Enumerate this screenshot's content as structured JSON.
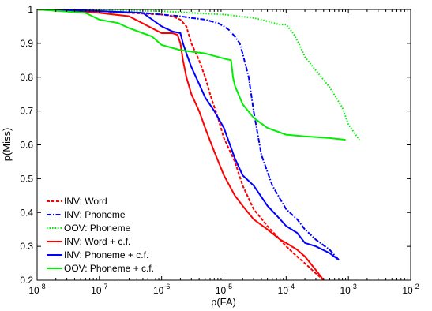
{
  "chart_data": {
    "type": "line",
    "xlabel": "p(FA)",
    "ylabel": "p(Miss)",
    "xscale": "log",
    "xlim": [
      1e-08,
      0.01
    ],
    "ylim": [
      0.2,
      1.0
    ],
    "x_ticks": [
      {
        "base": "10",
        "exp": "-8"
      },
      {
        "base": "10",
        "exp": "-7"
      },
      {
        "base": "10",
        "exp": "-6"
      },
      {
        "base": "10",
        "exp": "-5"
      },
      {
        "base": "10",
        "exp": "-4"
      },
      {
        "base": "10",
        "exp": "-3"
      },
      {
        "base": "10",
        "exp": "-2"
      }
    ],
    "x_tick_values": [
      1e-08,
      1e-07,
      1e-06,
      1e-05,
      0.0001,
      0.001,
      0.01
    ],
    "y_ticks": [
      "0.2",
      "0.3",
      "0.4",
      "0.5",
      "0.6",
      "0.7",
      "0.8",
      "0.9",
      "1"
    ],
    "y_tick_values": [
      0.2,
      0.3,
      0.4,
      0.5,
      0.6,
      0.7,
      0.8,
      0.9,
      1.0
    ],
    "grid": false,
    "legend_position": "bottom-left",
    "series": [
      {
        "name": "INV: Word",
        "color": "#ff0000",
        "dash": "dashed",
        "x": [
          1e-08,
          1e-07,
          3e-07,
          1e-06,
          1.5e-06,
          2e-06,
          2.5e-06,
          3e-06,
          4e-06,
          5e-06,
          6e-06,
          8e-06,
          1e-05,
          1.5e-05,
          2e-05,
          3e-05,
          5e-05,
          8e-05,
          0.0001,
          0.00015,
          0.0002,
          0.0003,
          0.0004
        ],
        "y": [
          1.0,
          0.995,
          0.99,
          0.985,
          0.98,
          0.97,
          0.95,
          0.9,
          0.85,
          0.8,
          0.75,
          0.68,
          0.62,
          0.55,
          0.48,
          0.41,
          0.36,
          0.32,
          0.3,
          0.27,
          0.25,
          0.22,
          0.2
        ]
      },
      {
        "name": "INV: Phoneme",
        "color": "#0000ff",
        "dash": "dashdot",
        "x": [
          1e-08,
          1e-07,
          5e-07,
          1e-06,
          2e-06,
          3e-06,
          5e-06,
          8e-06,
          1e-05,
          1.2e-05,
          1.5e-05,
          1.8e-05,
          2e-05,
          2.5e-05,
          3e-05,
          4e-05,
          6e-05,
          8e-05,
          0.0001,
          0.00015,
          0.0002,
          0.0003,
          0.0005,
          0.0007
        ],
        "y": [
          1.0,
          0.995,
          0.99,
          0.985,
          0.98,
          0.975,
          0.97,
          0.96,
          0.95,
          0.94,
          0.92,
          0.9,
          0.87,
          0.8,
          0.7,
          0.57,
          0.48,
          0.44,
          0.41,
          0.38,
          0.35,
          0.32,
          0.29,
          0.26
        ]
      },
      {
        "name": "OOV: Phoneme",
        "color": "#00ee00",
        "dash": "dotted",
        "x": [
          1e-08,
          1e-07,
          1e-06,
          3e-06,
          1e-05,
          3e-05,
          5e-05,
          8e-05,
          0.0001,
          0.00013,
          0.00016,
          0.0002,
          0.0003,
          0.0005,
          0.0008,
          0.001,
          0.0015
        ],
        "y": [
          1.0,
          0.998,
          0.995,
          0.99,
          0.985,
          0.975,
          0.965,
          0.955,
          0.955,
          0.93,
          0.9,
          0.86,
          0.82,
          0.77,
          0.71,
          0.66,
          0.615
        ]
      },
      {
        "name": "INV: Word + c.f.",
        "color": "#ff0000",
        "dash": "solid",
        "x": [
          1e-08,
          1e-07,
          3e-07,
          1e-06,
          1.5e-06,
          1.8e-06,
          2e-06,
          2.2e-06,
          2.5e-06,
          3e-06,
          4e-06,
          5e-06,
          7e-06,
          1e-05,
          1.5e-05,
          2e-05,
          3e-05,
          5e-05,
          8e-05,
          0.0001,
          0.00015,
          0.0002,
          0.0003,
          0.0004
        ],
        "y": [
          1.0,
          0.99,
          0.98,
          0.93,
          0.93,
          0.925,
          0.9,
          0.85,
          0.8,
          0.75,
          0.7,
          0.65,
          0.58,
          0.51,
          0.45,
          0.42,
          0.38,
          0.35,
          0.32,
          0.31,
          0.29,
          0.27,
          0.23,
          0.2
        ]
      },
      {
        "name": "INV: Phoneme + c.f.",
        "color": "#0000ff",
        "dash": "solid",
        "x": [
          1e-08,
          1e-07,
          5e-07,
          1e-06,
          1.5e-06,
          2e-06,
          2.2e-06,
          2.5e-06,
          3e-06,
          4e-06,
          5e-06,
          7e-06,
          1e-05,
          1.5e-05,
          2e-05,
          3e-05,
          5e-05,
          8e-05,
          0.0001,
          0.00015,
          0.0002,
          0.0003,
          0.0005,
          0.0007
        ],
        "y": [
          1.0,
          0.995,
          0.99,
          0.95,
          0.935,
          0.93,
          0.9,
          0.87,
          0.83,
          0.78,
          0.74,
          0.7,
          0.65,
          0.56,
          0.51,
          0.48,
          0.42,
          0.38,
          0.36,
          0.34,
          0.31,
          0.3,
          0.28,
          0.26
        ]
      },
      {
        "name": "OOV: Phoneme + c.f.",
        "color": "#00ee00",
        "dash": "solid",
        "x": [
          1e-08,
          6e-08,
          1e-07,
          2e-07,
          3e-07,
          5e-07,
          7e-07,
          1e-06,
          2e-06,
          5e-06,
          1e-05,
          1.3e-05,
          1.4e-05,
          1.5e-05,
          2e-05,
          3e-05,
          5e-05,
          0.0001,
          0.0002,
          0.0005,
          0.0009
        ],
        "y": [
          1.0,
          0.99,
          0.97,
          0.96,
          0.945,
          0.93,
          0.92,
          0.895,
          0.88,
          0.87,
          0.855,
          0.85,
          0.8,
          0.775,
          0.72,
          0.68,
          0.65,
          0.63,
          0.625,
          0.62,
          0.615
        ]
      }
    ]
  }
}
